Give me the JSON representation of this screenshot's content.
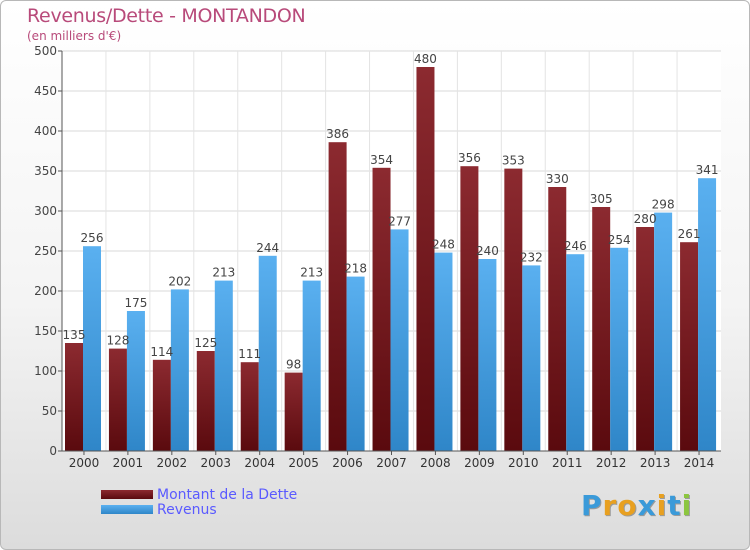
{
  "title": "Revenus/Dette - MONTANDON",
  "subtitle": "(en milliers d'€)",
  "logo": {
    "text": "Proxiti",
    "letter_colors": [
      "#3a9ad9",
      "#e8a020",
      "#e8a020",
      "#3a9ad9",
      "#e8a020",
      "#3a9ad9",
      "#8cc63f"
    ]
  },
  "legend": {
    "items": [
      {
        "label": "Montant de la Dette",
        "color": "#7a1a1f"
      },
      {
        "label": "Revenus",
        "color": "#4aa3e6"
      }
    ]
  },
  "chart_data": {
    "type": "bar",
    "title": "Revenus/Dette - MONTANDON",
    "ylim": [
      0,
      500
    ],
    "yticks": [
      0,
      50,
      100,
      150,
      200,
      250,
      300,
      350,
      400,
      450,
      500
    ],
    "grid": true,
    "legend_position": "bottom-left",
    "categories": [
      "2000",
      "2001",
      "2002",
      "2003",
      "2004",
      "2005",
      "2006",
      "2007",
      "2008",
      "2009",
      "2010",
      "2011",
      "2012",
      "2013",
      "2014"
    ],
    "series": [
      {
        "name": "Montant de la Dette",
        "color": "#7a1a1f",
        "values": [
          135,
          128,
          114,
          125,
          111,
          98,
          386,
          354,
          480,
          356,
          353,
          330,
          305,
          280,
          261
        ],
        "labels": [
          "135",
          "128",
          "114",
          "125",
          "111",
          "98",
          "386",
          "354",
          "480",
          "356",
          "353",
          "330",
          "305",
          "280",
          "261"
        ]
      },
      {
        "name": "Revenus",
        "color": "#4aa3e6",
        "values": [
          256,
          175,
          202,
          213,
          244,
          213,
          218,
          277,
          248,
          240,
          232,
          246,
          254,
          298,
          341
        ],
        "labels": [
          "256",
          "175",
          "202",
          "213",
          "244",
          "213",
          "218",
          "277",
          "248",
          "240",
          "232",
          "246",
          "254",
          "298",
          "341"
        ]
      }
    ]
  }
}
